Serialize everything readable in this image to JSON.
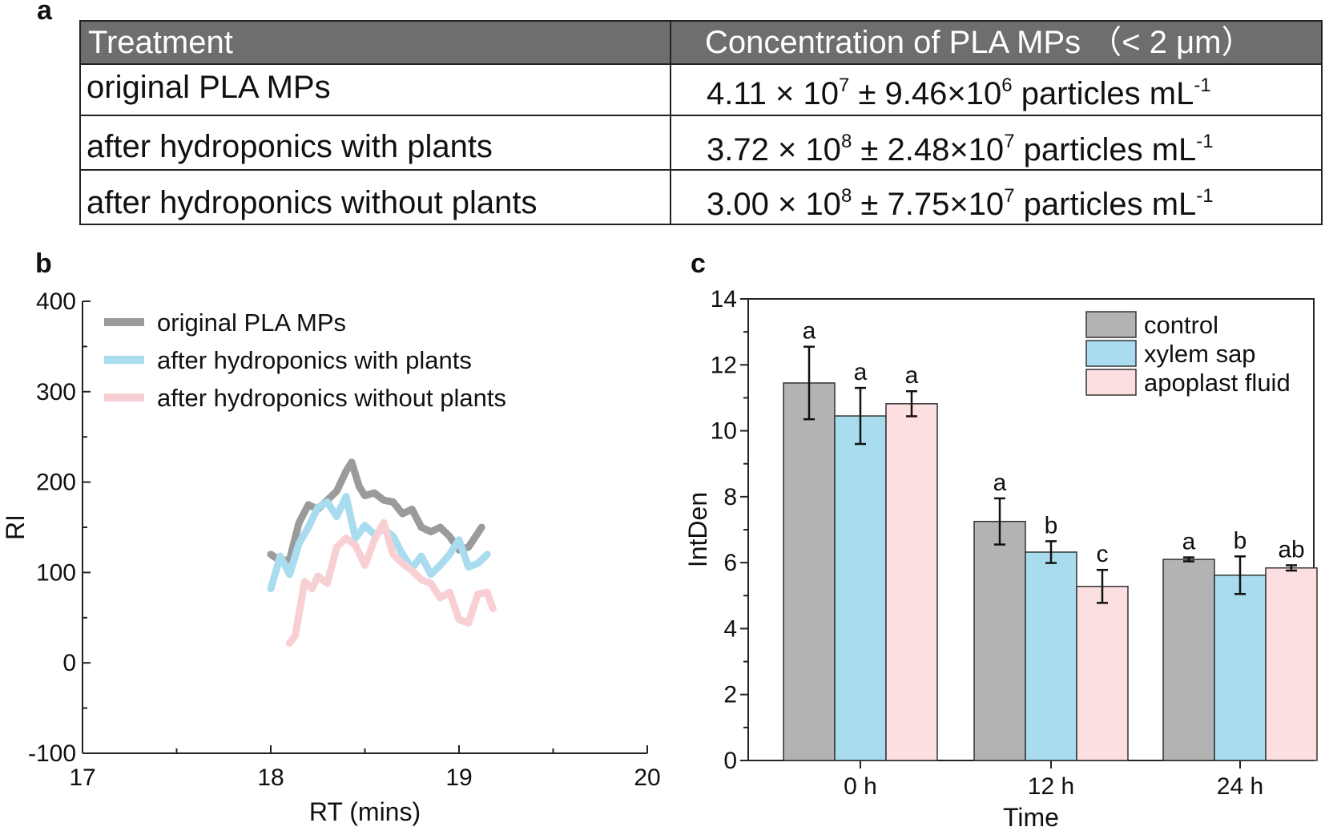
{
  "panel_labels": {
    "a": "a",
    "b": "b",
    "c": "c"
  },
  "table": {
    "header": {
      "treatment": "Treatment",
      "concentration": "Concentration of PLA MPs  （< 2 μm）"
    },
    "rows": [
      {
        "treatment": "original PLA MPs",
        "mean_mant": "4.11 × 10",
        "mean_exp": "7",
        "sd_mant": " ± 9.46×10",
        "sd_exp": "6",
        "unit": " particles mL",
        "unit_exp": "-1"
      },
      {
        "treatment": "after hydroponics with plants",
        "mean_mant": "3.72 × 10",
        "mean_exp": "8",
        "sd_mant": " ± 2.48×10",
        "sd_exp": "7",
        "unit": " particles mL",
        "unit_exp": "-1"
      },
      {
        "treatment": "after hydroponics without plants",
        "mean_mant": "3.00 × 10",
        "mean_exp": "8",
        "sd_mant": " ± 7.75×10",
        "sd_exp": "7",
        "unit": " particles mL",
        "unit_exp": "-1"
      }
    ],
    "colors": {
      "header_bg": "#6e6e6e",
      "border": "#222222"
    }
  },
  "chart_data": [
    {
      "id": "b",
      "type": "line",
      "xlabel": "RT (mins)",
      "ylabel": "RI",
      "xlim": [
        17,
        20
      ],
      "ylim": [
        -100,
        400
      ],
      "xticks": [
        17,
        18,
        19,
        20
      ],
      "yticks": [
        -100,
        0,
        100,
        200,
        300,
        400
      ],
      "legend_position": "top-left",
      "series": [
        {
          "name": "original PLA MPs",
          "color": "#9b9b9b",
          "x": [
            18.0,
            18.05,
            18.1,
            18.15,
            18.2,
            18.25,
            18.3,
            18.35,
            18.4,
            18.43,
            18.47,
            18.5,
            18.55,
            18.6,
            18.65,
            18.7,
            18.75,
            18.8,
            18.85,
            18.9,
            18.95,
            19.0,
            19.05,
            19.12
          ],
          "y": [
            120,
            113,
            114,
            155,
            175,
            170,
            180,
            190,
            212,
            222,
            195,
            185,
            188,
            180,
            178,
            165,
            170,
            150,
            145,
            150,
            140,
            125,
            128,
            150
          ]
        },
        {
          "name": "after hydroponics with plants",
          "color": "#a9dcee",
          "x": [
            18.0,
            18.05,
            18.1,
            18.15,
            18.2,
            18.25,
            18.3,
            18.35,
            18.4,
            18.45,
            18.5,
            18.55,
            18.6,
            18.65,
            18.7,
            18.75,
            18.8,
            18.85,
            18.9,
            18.95,
            19.0,
            19.05,
            19.1,
            19.15
          ],
          "y": [
            82,
            118,
            98,
            132,
            150,
            172,
            178,
            162,
            184,
            138,
            152,
            142,
            148,
            140,
            120,
            105,
            118,
            98,
            108,
            120,
            136,
            106,
            110,
            120
          ]
        },
        {
          "name": "after hydroponics without plants",
          "color": "#f8d0d4",
          "x": [
            18.1,
            18.13,
            18.18,
            18.22,
            18.25,
            18.3,
            18.35,
            18.4,
            18.45,
            18.5,
            18.55,
            18.6,
            18.65,
            18.7,
            18.75,
            18.8,
            18.85,
            18.9,
            18.95,
            19.0,
            19.05,
            19.1,
            19.15,
            19.18
          ],
          "y": [
            22,
            30,
            90,
            82,
            96,
            88,
            128,
            138,
            130,
            108,
            136,
            155,
            120,
            110,
            102,
            92,
            88,
            72,
            78,
            48,
            44,
            76,
            78,
            60
          ]
        }
      ]
    },
    {
      "id": "c",
      "type": "bar",
      "xlabel": "Time",
      "ylabel": "IntDen",
      "ylim": [
        0,
        14
      ],
      "yticks": [
        0,
        2,
        4,
        6,
        8,
        10,
        12,
        14
      ],
      "categories": [
        "0 h",
        "12 h",
        "24 h"
      ],
      "legend_position": "top-right",
      "series": [
        {
          "name": "control",
          "color": "#b3b3b3",
          "values": [
            11.45,
            7.25,
            6.1
          ],
          "errors": [
            1.1,
            0.7,
            0.06
          ],
          "letters": [
            "a",
            "a",
            "a"
          ]
        },
        {
          "name": "xylem sap",
          "color": "#a9dcee",
          "values": [
            10.45,
            6.32,
            5.62
          ],
          "errors": [
            0.85,
            0.33,
            0.57
          ],
          "letters": [
            "a",
            "b",
            "b"
          ]
        },
        {
          "name": "apoplast fluid",
          "color": "#fcdfe1",
          "values": [
            10.82,
            5.28,
            5.84
          ],
          "errors": [
            0.38,
            0.5,
            0.08
          ],
          "letters": [
            "a",
            "c",
            "ab"
          ]
        }
      ]
    }
  ]
}
